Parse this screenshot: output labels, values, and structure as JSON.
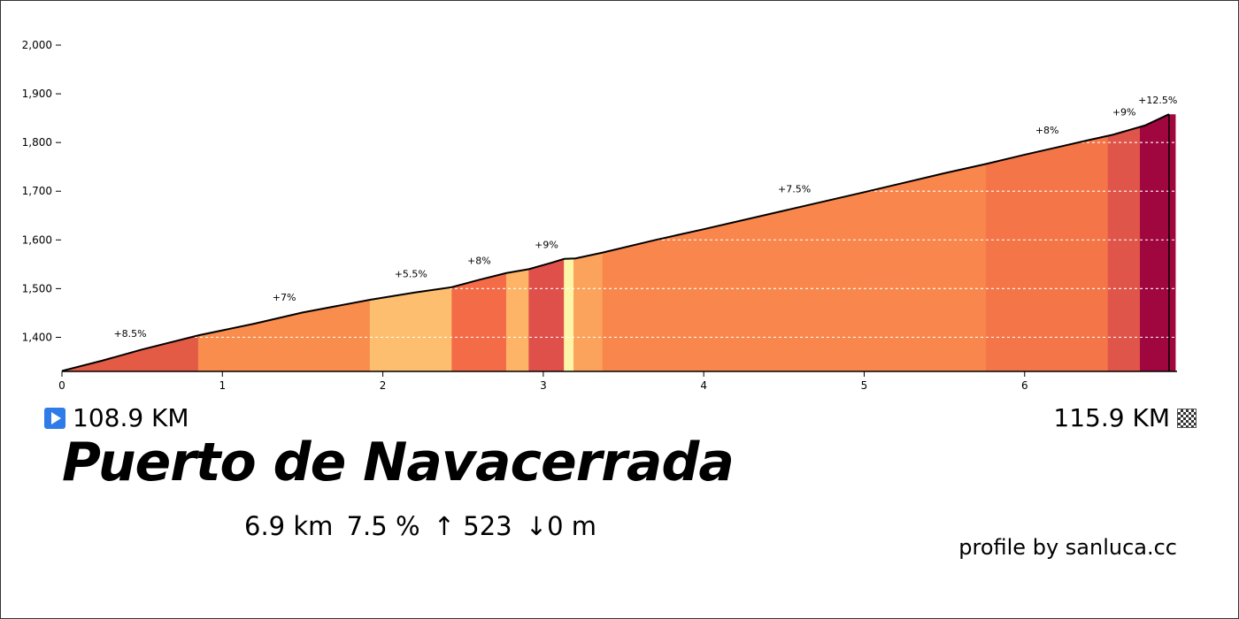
{
  "chart_data": {
    "type": "area",
    "title": "Puerto de Navacerrada",
    "xlabel": "",
    "ylabel": "",
    "xlim": [
      0,
      6.95
    ],
    "ylim": [
      1330,
      2020
    ],
    "x_ticks": [
      0,
      1,
      2,
      3,
      4,
      5,
      6
    ],
    "x_tick_labels": [
      "0",
      "1",
      "2",
      "3",
      "4",
      "5",
      "6"
    ],
    "y_ticks": [
      1400,
      1500,
      1600,
      1700,
      1800,
      1900,
      2000
    ],
    "y_tick_labels": [
      "1,400",
      "1,500",
      "1,600",
      "1,700",
      "1,800",
      "1,900",
      "2,000"
    ],
    "grid": "horizontal dashed",
    "profile": {
      "x": [
        0,
        0.25,
        0.5,
        0.85,
        1.2,
        1.5,
        1.92,
        2.2,
        2.43,
        2.6,
        2.77,
        2.91,
        3.05,
        3.13,
        3.2,
        3.37,
        3.7,
        4.0,
        4.5,
        5.0,
        5.5,
        5.76,
        6.0,
        6.2,
        6.4,
        6.55,
        6.75,
        6.9
      ],
      "y": [
        1331,
        1352,
        1375,
        1404,
        1428,
        1451,
        1477,
        1492,
        1503,
        1518,
        1532,
        1540,
        1553,
        1561,
        1562,
        1574,
        1600,
        1622,
        1660,
        1698,
        1737,
        1756,
        1775,
        1790,
        1805,
        1816,
        1835,
        1858
      ]
    },
    "segments": [
      {
        "from": 0,
        "to": 0.85,
        "grade": "+8.5%",
        "color": "#e35b45"
      },
      {
        "from": 0.85,
        "to": 1.92,
        "grade": "+7%",
        "color": "#f98d4e"
      },
      {
        "from": 1.92,
        "to": 2.43,
        "grade": "+5.5%",
        "color": "#fdbe70"
      },
      {
        "from": 2.43,
        "to": 2.77,
        "grade": "+8%",
        "color": "#f46b48"
      },
      {
        "from": 2.77,
        "to": 2.91,
        "grade": "",
        "color": "#fdb466"
      },
      {
        "from": 2.91,
        "to": 3.13,
        "grade": "+9%",
        "color": "#e0504b"
      },
      {
        "from": 3.13,
        "to": 3.19,
        "grade": "",
        "color": "#fdf5a8"
      },
      {
        "from": 3.19,
        "to": 3.37,
        "grade": "",
        "color": "#fba25c"
      },
      {
        "from": 3.37,
        "to": 5.76,
        "grade": "+7.5%",
        "color": "#f9874d"
      },
      {
        "from": 5.76,
        "to": 6.52,
        "grade": "+8%",
        "color": "#f47547"
      },
      {
        "from": 6.52,
        "to": 6.72,
        "grade": "+9%",
        "color": "#e0554a"
      },
      {
        "from": 6.72,
        "to": 6.94,
        "grade": "+12.5%",
        "color": "#a0073f"
      }
    ]
  },
  "markers": {
    "start": "108.9 KM",
    "end": "115.9 KM"
  },
  "climb": {
    "name": "Puerto de Navacerrada",
    "distance": "6.9 km",
    "avg_grade": "7.5 %",
    "ascent": "↑ 523",
    "descent": "↓0 m"
  },
  "credit": "profile by sanluca.cc"
}
